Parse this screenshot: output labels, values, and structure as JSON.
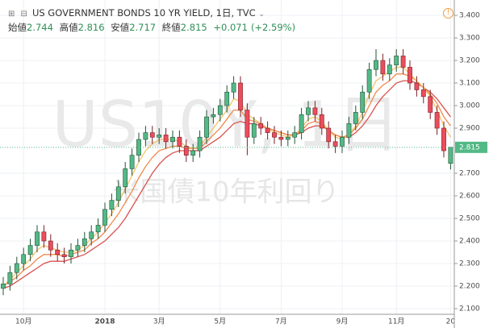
{
  "chart_data": {
    "type": "candlestick",
    "title": "US GOVERNMENT BONDS 10 YR YIELD, 1日, TVC",
    "watermark": "US10Y, 1日",
    "watermark_sub": "米国債10年利回り",
    "ohlc_labels": [
      "始値",
      "高値",
      "安値",
      "終値"
    ],
    "change": "+0.071",
    "change_pct": "(+2.59%)",
    "categories": [
      null,
      null,
      null,
      "10月",
      null,
      null,
      null,
      null,
      null,
      null,
      null,
      null,
      null,
      null,
      null,
      "2018",
      null,
      null,
      null,
      null,
      null,
      null,
      null,
      "3月",
      null,
      null,
      null,
      null,
      null,
      null,
      null,
      null,
      "5月",
      null,
      null,
      null,
      null,
      null,
      null,
      null,
      null,
      "7月",
      null,
      null,
      null,
      null,
      null,
      null,
      null,
      null,
      "9月",
      null,
      null,
      null,
      null,
      null,
      null,
      null,
      "11月",
      null,
      null,
      null,
      null,
      null,
      null,
      null,
      "20"
    ],
    "open": [
      2.19,
      2.21,
      2.26,
      2.3,
      2.34,
      2.38,
      2.44,
      2.4,
      2.36,
      2.34,
      2.33,
      2.36,
      2.38,
      2.41,
      2.44,
      2.47,
      2.54,
      2.58,
      2.64,
      2.72,
      2.78,
      2.85,
      2.88,
      2.86,
      2.87,
      2.84,
      2.86,
      2.82,
      2.78,
      2.8,
      2.86,
      2.95,
      2.96,
      3.0,
      3.06,
      3.1,
      2.98,
      2.86,
      2.92,
      2.9,
      2.88,
      2.86,
      2.85,
      2.86,
      2.88,
      2.96,
      2.99,
      2.96,
      2.9,
      2.84,
      2.82,
      2.86,
      2.92,
      2.97,
      3.06,
      3.16,
      3.2,
      3.14,
      3.18,
      3.22,
      3.17,
      3.1,
      3.07,
      3.04,
      2.97,
      2.9,
      2.744
    ],
    "high": [
      2.24,
      2.29,
      2.33,
      2.37,
      2.41,
      2.47,
      2.47,
      2.43,
      2.39,
      2.37,
      2.39,
      2.41,
      2.44,
      2.47,
      2.5,
      2.57,
      2.61,
      2.67,
      2.75,
      2.81,
      2.88,
      2.91,
      2.91,
      2.9,
      2.9,
      2.89,
      2.89,
      2.85,
      2.83,
      2.89,
      2.98,
      2.99,
      3.03,
      3.09,
      3.13,
      3.13,
      3.01,
      2.95,
      2.95,
      2.93,
      2.91,
      2.89,
      2.89,
      2.91,
      2.99,
      3.02,
      3.02,
      2.99,
      2.93,
      2.87,
      2.89,
      2.95,
      3.0,
      3.09,
      3.19,
      3.25,
      3.23,
      3.21,
      3.25,
      3.25,
      3.2,
      3.13,
      3.1,
      3.07,
      3.0,
      2.93,
      2.816
    ],
    "low": [
      2.16,
      2.18,
      2.23,
      2.27,
      2.31,
      2.35,
      2.37,
      2.33,
      2.31,
      2.3,
      2.3,
      2.33,
      2.35,
      2.38,
      2.41,
      2.44,
      2.51,
      2.55,
      2.61,
      2.69,
      2.75,
      2.82,
      2.83,
      2.83,
      2.81,
      2.81,
      2.79,
      2.75,
      2.75,
      2.77,
      2.83,
      2.92,
      2.93,
      2.97,
      3.03,
      2.95,
      2.78,
      2.83,
      2.87,
      2.85,
      2.83,
      2.82,
      2.82,
      2.83,
      2.85,
      2.93,
      2.93,
      2.87,
      2.81,
      2.79,
      2.79,
      2.83,
      2.89,
      2.94,
      3.03,
      3.13,
      3.11,
      3.11,
      3.15,
      3.14,
      3.07,
      3.04,
      3.01,
      2.94,
      2.87,
      2.77,
      2.717
    ],
    "close": [
      2.21,
      2.26,
      2.3,
      2.34,
      2.38,
      2.44,
      2.4,
      2.36,
      2.34,
      2.33,
      2.36,
      2.38,
      2.41,
      2.44,
      2.47,
      2.54,
      2.58,
      2.64,
      2.72,
      2.78,
      2.85,
      2.88,
      2.86,
      2.87,
      2.84,
      2.86,
      2.82,
      2.78,
      2.8,
      2.86,
      2.95,
      2.96,
      3.0,
      3.06,
      3.1,
      2.98,
      2.86,
      2.92,
      2.9,
      2.88,
      2.86,
      2.85,
      2.86,
      2.88,
      2.96,
      2.99,
      2.96,
      2.9,
      2.84,
      2.82,
      2.86,
      2.92,
      2.97,
      3.06,
      3.16,
      3.2,
      3.14,
      3.18,
      3.22,
      3.17,
      3.1,
      3.07,
      3.04,
      2.97,
      2.9,
      2.8,
      2.815
    ],
    "up_color": "#53b987",
    "down_color": "#eb4d5c",
    "ma": [
      {
        "color": "#d9534f",
        "values": [
          2.19,
          2.2,
          2.22,
          2.24,
          2.26,
          2.28,
          2.3,
          2.31,
          2.31,
          2.31,
          2.32,
          2.33,
          2.34,
          2.36,
          2.38,
          2.4,
          2.43,
          2.46,
          2.5,
          2.55,
          2.6,
          2.65,
          2.7,
          2.74,
          2.77,
          2.79,
          2.8,
          2.8,
          2.8,
          2.8,
          2.82,
          2.84,
          2.86,
          2.89,
          2.92,
          2.93,
          2.92,
          2.92,
          2.91,
          2.9,
          2.89,
          2.88,
          2.87,
          2.87,
          2.88,
          2.9,
          2.91,
          2.91,
          2.89,
          2.87,
          2.86,
          2.86,
          2.88,
          2.91,
          2.95,
          3.0,
          3.04,
          3.07,
          3.1,
          3.11,
          3.11,
          3.1,
          3.08,
          3.06,
          3.03,
          2.99,
          2.95
        ]
      },
      {
        "color": "#f08a4b",
        "values": [
          2.2,
          2.22,
          2.24,
          2.27,
          2.29,
          2.32,
          2.34,
          2.34,
          2.34,
          2.33,
          2.34,
          2.35,
          2.36,
          2.39,
          2.41,
          2.44,
          2.48,
          2.52,
          2.57,
          2.62,
          2.68,
          2.73,
          2.77,
          2.8,
          2.81,
          2.82,
          2.82,
          2.81,
          2.81,
          2.81,
          2.84,
          2.87,
          2.9,
          2.94,
          2.98,
          2.98,
          2.94,
          2.93,
          2.92,
          2.9,
          2.89,
          2.88,
          2.87,
          2.87,
          2.89,
          2.92,
          2.93,
          2.92,
          2.89,
          2.87,
          2.86,
          2.87,
          2.9,
          2.94,
          3.0,
          3.06,
          3.09,
          3.11,
          3.14,
          3.14,
          3.13,
          3.11,
          3.08,
          3.05,
          3.01,
          2.95,
          2.91
        ]
      },
      {
        "color": "#f5c46b",
        "values": [
          2.2,
          2.23,
          2.26,
          2.29,
          2.32,
          2.36,
          2.38,
          2.37,
          2.36,
          2.35,
          2.35,
          2.36,
          2.38,
          2.41,
          2.44,
          2.48,
          2.52,
          2.57,
          2.63,
          2.69,
          2.75,
          2.8,
          2.83,
          2.85,
          2.85,
          2.85,
          2.84,
          2.82,
          2.81,
          2.82,
          2.86,
          2.9,
          2.94,
          2.98,
          3.03,
          3.02,
          2.96,
          2.94,
          2.92,
          2.9,
          2.88,
          2.87,
          2.86,
          2.87,
          2.9,
          2.94,
          2.95,
          2.93,
          2.89,
          2.86,
          2.85,
          2.87,
          2.91,
          2.97,
          3.05,
          3.11,
          3.13,
          3.15,
          3.17,
          3.17,
          3.14,
          3.11,
          3.08,
          3.04,
          2.98,
          2.91,
          2.86
        ]
      }
    ],
    "ylim": [
      2.075,
      3.468
    ],
    "yticks": [
      {
        "value": 3.4,
        "label": "3.400"
      },
      {
        "value": 3.3,
        "label": "3.300"
      },
      {
        "value": 3.2,
        "label": "3.200"
      },
      {
        "value": 3.1,
        "label": "3.100"
      },
      {
        "value": 3.0,
        "label": "3.000"
      },
      {
        "value": 2.9,
        "label": "2.900"
      },
      {
        "value": 2.7,
        "label": "2.700"
      },
      {
        "value": 2.6,
        "label": "2.600"
      },
      {
        "value": 2.5,
        "label": "2.500"
      },
      {
        "value": 2.4,
        "label": "2.400"
      },
      {
        "value": 2.3,
        "label": "2.300"
      },
      {
        "value": 2.2,
        "label": "2.200"
      },
      {
        "value": 2.1,
        "label": "2.100"
      }
    ],
    "grid": true,
    "price_line_color": "#53b987"
  }
}
